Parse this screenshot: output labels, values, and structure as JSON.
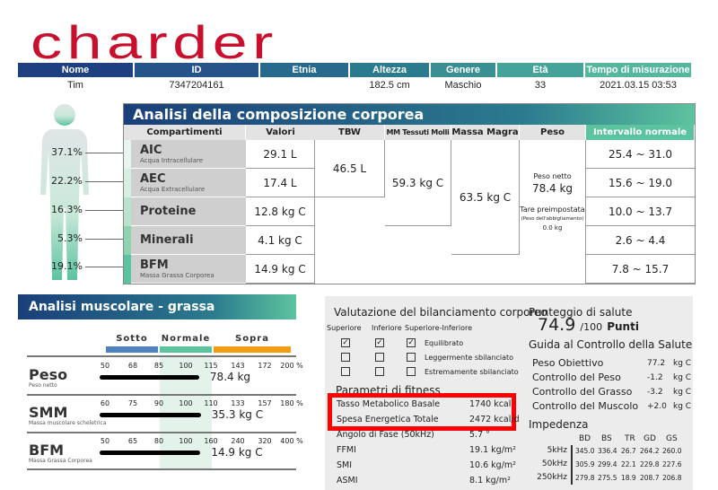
{
  "logo": "charder",
  "patient": {
    "headers": [
      "Nome",
      "ID",
      "Etnia",
      "Altezza",
      "Genere",
      "Età",
      "Tempo di misurazione"
    ],
    "values": [
      "Tim",
      "7347204161",
      "",
      "182.5 cm",
      "Maschio",
      "33",
      "2021.03.15 03:53"
    ]
  },
  "body_percent": [
    "37.1%",
    "22.2%",
    "16.3%",
    "5.3%",
    "19.1%"
  ],
  "composition": {
    "title": "Analisi della composizione corporea",
    "headers": [
      "Compartimenti",
      "Valori",
      "TBW",
      "MM Tessuti Molli",
      "Massa Magra",
      "Peso",
      "Intervallo normale"
    ],
    "rows": [
      {
        "name": "AIC",
        "sub": "Acqua Intracellulare",
        "value": "29.1 L",
        "range": "25.4 ~ 31.0"
      },
      {
        "name": "AEC",
        "sub": "Acqua Extracellulare",
        "value": "17.4 L",
        "range": "15.6 ~ 19.0"
      },
      {
        "name": "Proteine",
        "sub": "",
        "value": "12.8 kg C",
        "range": "10.0 ~ 13.7"
      },
      {
        "name": "Minerali",
        "sub": "",
        "value": "4.1 kg C",
        "range": "2.6 ~ 4.4"
      },
      {
        "name": "BFM",
        "sub": "Massa Grassa Corporea",
        "value": "14.9 kg C",
        "range": "7.8 ~ 15.7"
      }
    ],
    "tbw": "46.5 L",
    "mm": "59.3 kg C",
    "massa_magra": "63.5 kg C",
    "peso": {
      "label": "Peso netto",
      "value": "78.4 kg",
      "tare_label": "Tare preimpostata",
      "tare_sub": "(Peso dell'abbigliamento)",
      "tare_value": "0.0 kg"
    }
  },
  "muscle": {
    "title": "Analisi muscolare - grassa",
    "legend": [
      "Sotto",
      "Normale",
      "Sopra"
    ],
    "colors": {
      "sotto": "#4f81bd",
      "normale": "#5cc39f",
      "sopra": "#f39c12"
    },
    "rows": [
      {
        "name": "Peso",
        "sub": "Peso netto",
        "ticks": [
          "50",
          "68",
          "85",
          "100",
          "115",
          "143",
          "172",
          "200 %"
        ],
        "value": "78.4 kg",
        "percent": 108
      },
      {
        "name": "SMM",
        "sub": "Massa muscolare scheletrica",
        "ticks": [
          "60",
          "75",
          "90",
          "100",
          "110",
          "133",
          "157",
          "180 %"
        ],
        "value": "35.3 kg C",
        "percent": 106
      },
      {
        "name": "BFM",
        "sub": "Massa Grassa Corporea",
        "ticks": [
          "50",
          "65",
          "80",
          "100",
          "160",
          "240",
          "320",
          "400 %"
        ],
        "value": "14.9 kg C",
        "percent": 135
      }
    ]
  },
  "balance": {
    "title": "Valutazione del bilanciamento corporeo",
    "cols": [
      "Superiore",
      "Inferiore",
      "Superiore-Inferiore"
    ],
    "rows": [
      {
        "label": "Equilibrato",
        "checked": true
      },
      {
        "label": "Leggermente sbilanciato",
        "checked": false
      },
      {
        "label": "Estremamente sbilanciato",
        "checked": false
      }
    ]
  },
  "fitness": {
    "title": "Parametri di fitness",
    "rows": [
      [
        "Tasso Metabolico Basale",
        "1740 kcal"
      ],
      [
        "Spesa Energetica Totale",
        "2472 kcal/d"
      ],
      [
        "Angolo di Fase (50kHz)",
        "5.7 °"
      ],
      [
        "FFMI",
        "19.1 kg/m²"
      ],
      [
        "SMI",
        "10.6 kg/m²"
      ],
      [
        "ASMI",
        "8.1 kg/m²"
      ]
    ]
  },
  "score": {
    "title": "Punteggio di salute",
    "value": "74.9",
    "max": "/100",
    "unit": "Punti"
  },
  "guide": {
    "title": "Guida al Controllo della Salute",
    "rows": [
      [
        "Peso Obiettivo",
        "77.2",
        "kg C"
      ],
      [
        "Controllo del Peso",
        "-1.2",
        "kg C"
      ],
      [
        "Controllo del Grasso",
        "-3.2",
        "kg C"
      ],
      [
        "Controllo del Muscolo",
        "+2.0",
        "kg C"
      ]
    ]
  },
  "impedance": {
    "title": "Impedenza",
    "cols": [
      "BD",
      "BS",
      "TR",
      "GD",
      "GS"
    ],
    "rows": [
      {
        "f": "5kHz",
        "v": [
          "345.0",
          "336.4",
          "26.7",
          "264.2",
          "260.0"
        ]
      },
      {
        "f": "50kHz",
        "v": [
          "305.9",
          "299.4",
          "22.1",
          "229.8",
          "227.6"
        ]
      },
      {
        "f": "250kHz",
        "v": [
          "279.8",
          "275.5",
          "18.9",
          "208.7",
          "206.8"
        ]
      }
    ]
  },
  "highlight_color": "#ff0000"
}
